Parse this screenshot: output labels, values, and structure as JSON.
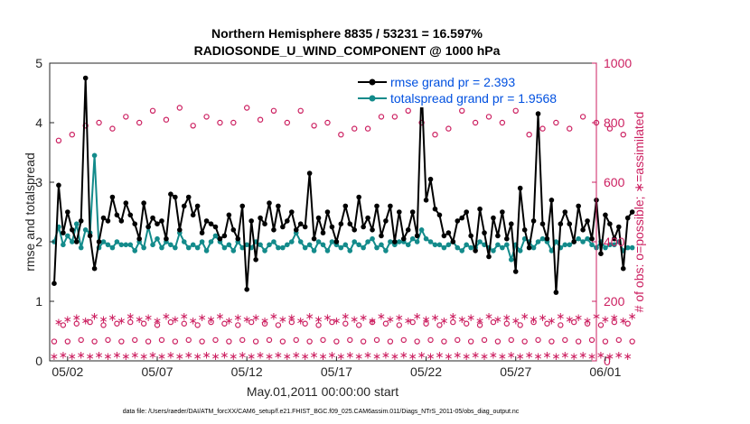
{
  "chart_data": {
    "type": "line",
    "title": "Northern Hemisphere 8835 / 53231 = 16.597%",
    "subtitle": "RADIOSONDE_U_WIND_COMPONENT @ 1000 hPa",
    "xlabel": "May.01,2011 00:00:00 start",
    "ylabel_left": "rmse and totalspread",
    "ylabel_right": "# of obs: o=possible; ∗=assimilated",
    "ylim_left": [
      0,
      5
    ],
    "ylim_right": [
      0,
      1000
    ],
    "xlim": [
      0,
      30.5
    ],
    "x_tick_values": [
      1,
      6,
      11,
      16,
      21,
      26,
      31
    ],
    "x_tick_labels": [
      "05/02",
      "05/07",
      "05/12",
      "05/17",
      "05/22",
      "05/27",
      "06/01"
    ],
    "y_left_ticks": [
      "0",
      "1",
      "2",
      "3",
      "4",
      "5"
    ],
    "y_right_ticks": [
      "0",
      "200",
      "400",
      "600",
      "800",
      "1000"
    ],
    "footer": "data file: /Users/raeder/DAI/ATM_forcXX/CAM6_setup/f.e21.FHIST_BGC.f09_025.CAM6assim.011/Diags_NTrS_2011-05/obs_diag_output.nc",
    "series": [
      {
        "name": "rmse grand pr = 2.393",
        "axis": "left",
        "color": "#000000",
        "marker": "dot",
        "x_start": 0.25,
        "x_step": 0.25,
        "values": [
          1.3,
          2.95,
          2.15,
          2.5,
          2.2,
          2.0,
          2.35,
          4.75,
          2.1,
          1.55,
          2.0,
          2.4,
          2.35,
          2.75,
          2.45,
          2.35,
          2.65,
          2.45,
          2.3,
          2.05,
          2.65,
          2.25,
          2.4,
          2.3,
          2.35,
          2.05,
          2.8,
          2.75,
          2.2,
          2.6,
          2.75,
          2.45,
          2.6,
          2.15,
          2.35,
          2.3,
          2.25,
          2.05,
          2.1,
          2.45,
          2.2,
          2.05,
          2.6,
          1.2,
          2.35,
          1.7,
          2.4,
          2.3,
          2.65,
          2.2,
          2.6,
          2.25,
          2.35,
          2.5,
          2.2,
          2.3,
          2.25,
          3.15,
          2.05,
          2.4,
          2.15,
          2.5,
          2.25,
          2.0,
          2.3,
          2.6,
          2.3,
          2.2,
          2.75,
          2.25,
          2.4,
          2.2,
          2.6,
          2.1,
          2.35,
          2.6,
          2.0,
          2.5,
          2.05,
          2.2,
          2.5,
          2.1,
          4.6,
          2.7,
          3.05,
          2.55,
          2.45,
          2.1,
          2.15,
          2.0,
          2.35,
          2.4,
          2.5,
          2.1,
          1.85,
          2.55,
          2.15,
          1.75,
          2.4,
          2.1,
          2.5,
          2.05,
          2.3,
          1.5,
          2.9,
          2.2,
          1.9,
          2.35,
          4.15,
          2.3,
          2.05,
          2.7,
          1.15,
          2.3,
          2.5,
          2.3,
          2.0,
          2.6,
          2.2,
          2.35,
          2.05,
          2.7,
          1.8,
          2.45,
          2.3,
          2.05,
          2.25,
          1.55,
          2.4,
          2.5
        ]
      },
      {
        "name": "totalspread grand pr = 1.9568",
        "axis": "left",
        "color": "#138b8b",
        "marker": "dot",
        "x_start": 0.25,
        "x_step": 0.25,
        "values": [
          2.0,
          2.25,
          1.95,
          2.1,
          2.0,
          2.3,
          1.9,
          2.2,
          2.15,
          3.45,
          1.9,
          2.0,
          1.95,
          1.9,
          2.0,
          1.95,
          1.95,
          1.95,
          1.85,
          2.0,
          1.9,
          2.25,
          1.95,
          2.05,
          1.9,
          2.0,
          1.95,
          1.9,
          2.15,
          2.0,
          1.9,
          1.95,
          1.9,
          2.0,
          1.85,
          2.0,
          2.1,
          2.0,
          1.9,
          1.95,
          1.85,
          2.0,
          1.9,
          1.95,
          1.9,
          2.0,
          1.95,
          1.85,
          1.95,
          2.0,
          1.9,
          1.9,
          1.95,
          2.0,
          2.15,
          2.0,
          1.9,
          1.95,
          1.85,
          2.0,
          1.95,
          1.85,
          2.0,
          1.95,
          1.9,
          1.95,
          1.85,
          2.0,
          1.95,
          1.9,
          2.0,
          2.05,
          1.9,
          1.95,
          1.85,
          2.0,
          1.95,
          2.0,
          2.0,
          1.95,
          2.05,
          2.0,
          2.2,
          2.05,
          2.0,
          1.95,
          1.95,
          1.9,
          1.95,
          2.0,
          1.9,
          1.85,
          1.95,
          1.9,
          1.9,
          2.0,
          1.95,
          1.9,
          1.85,
          1.95,
          1.9,
          1.95,
          1.7,
          1.95,
          1.85,
          2.05,
          2.0,
          1.9,
          2.0,
          2.05,
          2.0,
          1.85,
          2.0,
          1.9,
          1.95,
          1.95,
          2.0,
          2.05,
          2.0,
          2.05,
          1.95,
          1.9,
          2.0,
          1.9,
          1.95,
          1.95,
          2.0,
          1.85,
          1.9,
          1.9
        ]
      },
      {
        "name": "possible",
        "axis": "right",
        "color": "#cc1f60",
        "marker": "o",
        "x_start": 0.25,
        "x_step": 0.25,
        "values": [
          65,
          740,
          120,
          65,
          760,
          125,
          70,
          790,
          130,
          65,
          800,
          120,
          70,
          780,
          125,
          65,
          820,
          130,
          70,
          800,
          125,
          65,
          840,
          120,
          70,
          810,
          130,
          65,
          850,
          125,
          70,
          790,
          120,
          65,
          820,
          130,
          70,
          800,
          125,
          65,
          800,
          120,
          70,
          850,
          130,
          65,
          810,
          125,
          70,
          840,
          120,
          65,
          800,
          130,
          70,
          840,
          125,
          65,
          790,
          120,
          70,
          800,
          130,
          65,
          760,
          125,
          70,
          780,
          120,
          65,
          780,
          130,
          70,
          820,
          125,
          65,
          820,
          120,
          70,
          840,
          130,
          65,
          800,
          125,
          70,
          760,
          120,
          65,
          780,
          130,
          70,
          840,
          125,
          65,
          800,
          120,
          70,
          820,
          130,
          65,
          800,
          125,
          70,
          840,
          120,
          65,
          760,
          130,
          70,
          780,
          125,
          65,
          800,
          120,
          70,
          780,
          130,
          65,
          820,
          125,
          70,
          800,
          120,
          65,
          780,
          130,
          70,
          760,
          125,
          65
        ]
      },
      {
        "name": "assimilated",
        "axis": "right",
        "color": "#cc1f60",
        "marker": "*",
        "x_start": 0.25,
        "x_step": 0.25,
        "values": [
          15,
          130,
          20,
          140,
          15,
          145,
          20,
          135,
          15,
          150,
          20,
          140,
          15,
          145,
          20,
          135,
          15,
          150,
          20,
          140,
          15,
          145,
          20,
          135,
          15,
          150,
          20,
          140,
          15,
          150,
          20,
          135,
          15,
          145,
          20,
          140,
          15,
          150,
          20,
          135,
          15,
          145,
          20,
          140,
          15,
          145,
          20,
          135,
          15,
          150,
          20,
          140,
          15,
          145,
          20,
          135,
          15,
          150,
          20,
          140,
          15,
          145,
          20,
          135,
          15,
          150,
          20,
          140,
          15,
          145,
          20,
          135,
          15,
          150,
          20,
          140,
          15,
          145,
          20,
          135,
          15,
          150,
          20,
          140,
          15,
          145,
          20,
          135,
          15,
          150,
          20,
          140,
          15,
          145,
          20,
          135,
          15,
          150,
          20,
          140,
          15,
          145,
          20,
          135,
          15,
          150,
          20,
          140,
          15,
          145,
          20,
          135,
          15,
          150,
          20,
          140,
          15,
          145,
          20,
          135,
          15,
          150,
          20,
          140,
          15,
          145,
          20,
          135,
          15,
          150
        ]
      }
    ]
  }
}
